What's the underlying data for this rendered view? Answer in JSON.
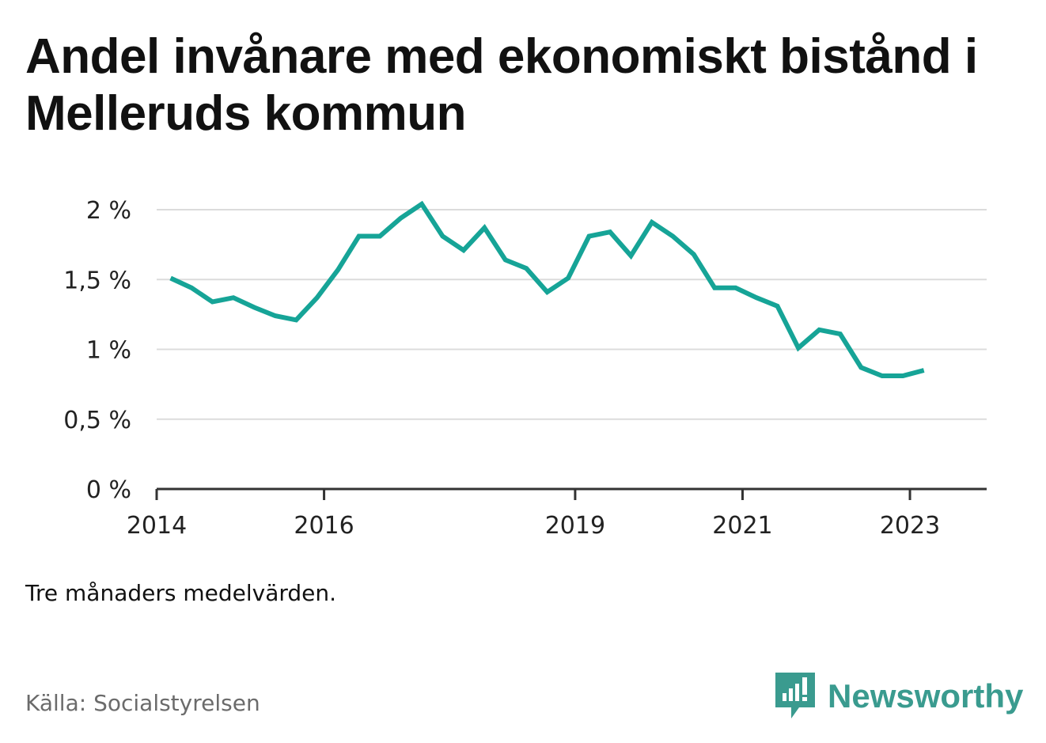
{
  "title": "Andel invånare med ekonomiskt bistånd i Melleruds kommun",
  "note": "Tre månaders medelvärden.",
  "source": "Källa: Socialstyrelsen",
  "brand": {
    "name": "Newsworthy",
    "icon": "newsworthy-logo-icon",
    "color": "#3a9b8f"
  },
  "chart_data": {
    "type": "line",
    "title": "Andel invånare med ekonomiskt bistånd i Melleruds kommun",
    "xlabel": "",
    "ylabel": "",
    "x_ticks": [
      "2014",
      "2016",
      "2019",
      "2021",
      "2023"
    ],
    "y_ticks": [
      "0 %",
      "0,5 %",
      "1 %",
      "1,5 %",
      "2 %"
    ],
    "ylim": [
      0,
      2.1
    ],
    "xlim": [
      "2014-01",
      "2023-12"
    ],
    "grid": true,
    "line_color": "#16a497",
    "series": [
      {
        "x": [
          "2014-03",
          "2014-06",
          "2014-09",
          "2014-12",
          "2015-03",
          "2015-06",
          "2015-09",
          "2015-12",
          "2016-03",
          "2016-06",
          "2016-09",
          "2016-12",
          "2017-03",
          "2017-06",
          "2017-09",
          "2017-12",
          "2018-03",
          "2018-06",
          "2018-09",
          "2018-12",
          "2019-03",
          "2019-06",
          "2019-09",
          "2019-12",
          "2020-03",
          "2020-06",
          "2020-09",
          "2020-12",
          "2021-03",
          "2021-06",
          "2021-09",
          "2021-12",
          "2022-03",
          "2022-06",
          "2022-09",
          "2022-12",
          "2023-03"
        ],
        "values": [
          1.51,
          1.44,
          1.34,
          1.37,
          1.3,
          1.24,
          1.21,
          1.37,
          1.57,
          1.81,
          1.81,
          1.94,
          2.04,
          1.81,
          1.71,
          1.87,
          1.64,
          1.58,
          1.41,
          1.51,
          1.81,
          1.84,
          1.67,
          1.91,
          1.81,
          1.68,
          1.44,
          1.44,
          1.37,
          1.31,
          1.01,
          1.14,
          1.11,
          0.87,
          0.81,
          0.81,
          0.85
        ]
      }
    ]
  }
}
